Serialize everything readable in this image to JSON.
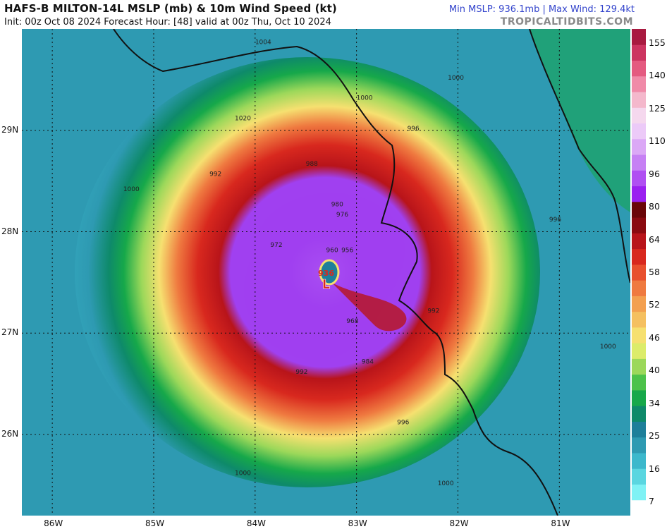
{
  "header": {
    "title": "HAFS-B MILTON-14L MSLP (mb) & 10m Wind Speed (kt)",
    "subtitle": "Init: 00z Oct 08 2024   Forecast Hour: [48]   valid at 00z Thu, Oct 10 2024",
    "stats": "Min MSLP: 936.1mb | Max Wind: 129.4kt",
    "brand": "TROPICALTIDBITS.COM"
  },
  "map": {
    "lon_range": [
      -86.3,
      -80.3
    ],
    "lat_range": [
      25.2,
      30.0
    ],
    "lat_ticks": [
      {
        "value": 26,
        "label": "26N"
      },
      {
        "value": 27,
        "label": "27N"
      },
      {
        "value": 28,
        "label": "28N"
      },
      {
        "value": 29,
        "label": "29N"
      }
    ],
    "lon_ticks": [
      {
        "value": -86,
        "label": "86W"
      },
      {
        "value": -85,
        "label": "85W"
      },
      {
        "value": -84,
        "label": "84W"
      },
      {
        "value": -83,
        "label": "83W"
      },
      {
        "value": -82,
        "label": "82W"
      },
      {
        "value": -81,
        "label": "81W"
      }
    ],
    "storm": {
      "lon": -83.3,
      "lat": 27.55,
      "symbol": "L",
      "min_pressure_label": "936"
    },
    "isobar_labels": [
      {
        "text": "1004",
        "lon": -84.0,
        "lat": 29.85
      },
      {
        "text": "1000",
        "lon": -82.1,
        "lat": 29.5
      },
      {
        "text": "1000",
        "lon": -83.0,
        "lat": 29.3
      },
      {
        "text": "1020",
        "lon": -84.2,
        "lat": 29.1
      },
      {
        "text": "996",
        "lon": -82.5,
        "lat": 29.0
      },
      {
        "text": "992",
        "lon": -84.45,
        "lat": 28.55
      },
      {
        "text": "988",
        "lon": -83.5,
        "lat": 28.65
      },
      {
        "text": "980",
        "lon": -83.25,
        "lat": 28.25
      },
      {
        "text": "976",
        "lon": -83.2,
        "lat": 28.15
      },
      {
        "text": "972",
        "lon": -83.85,
        "lat": 27.85
      },
      {
        "text": "960",
        "lon": -83.3,
        "lat": 27.8
      },
      {
        "text": "956",
        "lon": -83.15,
        "lat": 27.8
      },
      {
        "text": "968",
        "lon": -83.1,
        "lat": 27.1
      },
      {
        "text": "984",
        "lon": -82.95,
        "lat": 26.7
      },
      {
        "text": "992",
        "lon": -82.3,
        "lat": 27.2
      },
      {
        "text": "992",
        "lon": -83.6,
        "lat": 26.6
      },
      {
        "text": "996",
        "lon": -82.6,
        "lat": 26.1
      },
      {
        "text": "996",
        "lon": -81.1,
        "lat": 28.1
      },
      {
        "text": "1000",
        "lon": -80.6,
        "lat": 26.85
      },
      {
        "text": "1000",
        "lon": -84.2,
        "lat": 25.6
      },
      {
        "text": "1000",
        "lon": -82.2,
        "lat": 25.5
      },
      {
        "text": "1000",
        "lon": -85.3,
        "lat": 28.4
      }
    ]
  },
  "colorbar": {
    "labels": [
      "155",
      "140",
      "125",
      "110",
      "96",
      "80",
      "64",
      "58",
      "52",
      "46",
      "40",
      "34",
      "25",
      "16",
      "7"
    ],
    "colors": [
      "#ffffff",
      "#7ff2f5",
      "#5ad6e0",
      "#3cb8cc",
      "#2e9ab2",
      "#1e7f9a",
      "#0e8a6a",
      "#16a84a",
      "#4cc24a",
      "#9cd85a",
      "#dcec6a",
      "#f6e070",
      "#f5c060",
      "#f3a050",
      "#ef7a40",
      "#e8502e",
      "#d8281e",
      "#b8141a",
      "#8a0a10",
      "#6a0608",
      "#9a20f0",
      "#b050f2",
      "#c680f4",
      "#dba8f6",
      "#eccaf8",
      "#f5d8ee",
      "#f4b8cc",
      "#f08aa8",
      "#e45a80",
      "#cc3460",
      "#a81a40"
    ]
  }
}
